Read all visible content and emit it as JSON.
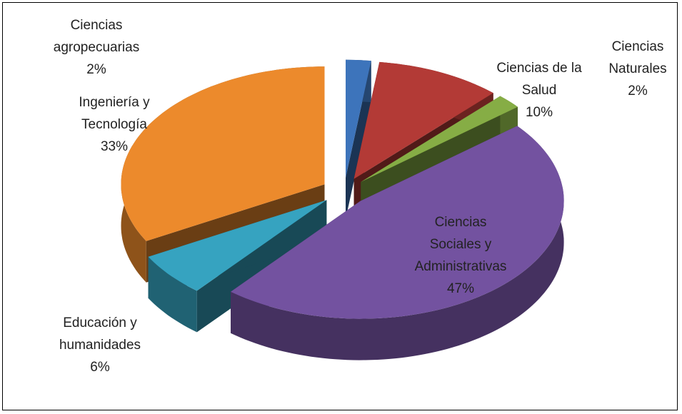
{
  "chart_data": {
    "type": "pie3d",
    "categories": [
      "Ciencias agropecuarias",
      "Ciencias de la Salud",
      "Ciencias Naturales",
      "Ciencias Sociales y Administrativas",
      "Educación y humanidades",
      "Ingeniería y Tecnología"
    ],
    "values": [
      2,
      10,
      2,
      47,
      6,
      33
    ],
    "value_labels": [
      "2%",
      "10%",
      "2%",
      "47%",
      "6%",
      "33%"
    ],
    "colors": [
      "#3d74bb",
      "#b33a36",
      "#86ad45",
      "#7352a0",
      "#36a3c0",
      "#ec8a2c"
    ]
  }
}
